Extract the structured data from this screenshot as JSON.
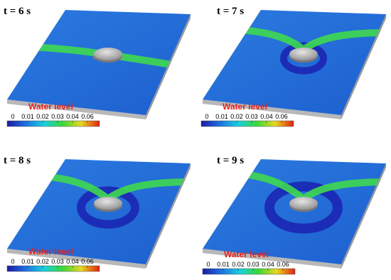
{
  "panels": [
    {
      "time_label": "t = 6 s",
      "legend_title": "Water level",
      "colorbar_ticks": [
        "0",
        "0.01",
        "0.02",
        "0.03",
        "0.04",
        "0.06"
      ]
    },
    {
      "time_label": "t = 7 s",
      "legend_title": "Water level",
      "colorbar_ticks": [
        "0",
        "0.01",
        "0.02",
        "0.03",
        "0.04",
        "0.06"
      ]
    },
    {
      "time_label": "t = 8 s",
      "legend_title": "Water level",
      "colorbar_ticks": [
        "0",
        "0.01",
        "0.02",
        "0.03",
        "0.04",
        "0.06"
      ]
    },
    {
      "time_label": "t = 9 s",
      "legend_title": "Water level",
      "colorbar_ticks": [
        "0",
        "0.01",
        "0.02",
        "0.03",
        "0.04",
        "0.06"
      ]
    }
  ]
}
